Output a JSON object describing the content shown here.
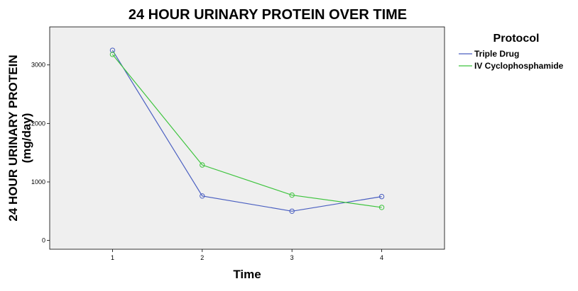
{
  "chart_data": {
    "type": "line",
    "title": "24 HOUR URINARY PROTEIN OVER TIME",
    "xlabel": "Time",
    "ylabel_lines": [
      "24 HOUR URINARY PROTEIN",
      "(mg/day)"
    ],
    "x": [
      1,
      2,
      3,
      4
    ],
    "x_tick_labels": [
      "1",
      "2",
      "3",
      "4"
    ],
    "xlim": [
      0.3,
      4.7
    ],
    "y_ticks": [
      0,
      1000,
      2000,
      3000
    ],
    "y_tick_labels": [
      "0",
      "1000",
      "2000",
      "3000"
    ],
    "ylim": [
      -150,
      3650
    ],
    "grid": false,
    "legend": {
      "title": "Protocol",
      "position": "right"
    },
    "series": [
      {
        "name": "Triple Drug",
        "values": [
          3250,
          760,
          500,
          750
        ],
        "color": "#4a5fc1",
        "marker": "open-circle"
      },
      {
        "name": "IV Cyclophosphamide",
        "values": [
          3180,
          1290,
          775,
          565
        ],
        "color": "#3ec43e",
        "marker": "open-circle"
      }
    ],
    "plot_background": "#efefef"
  }
}
